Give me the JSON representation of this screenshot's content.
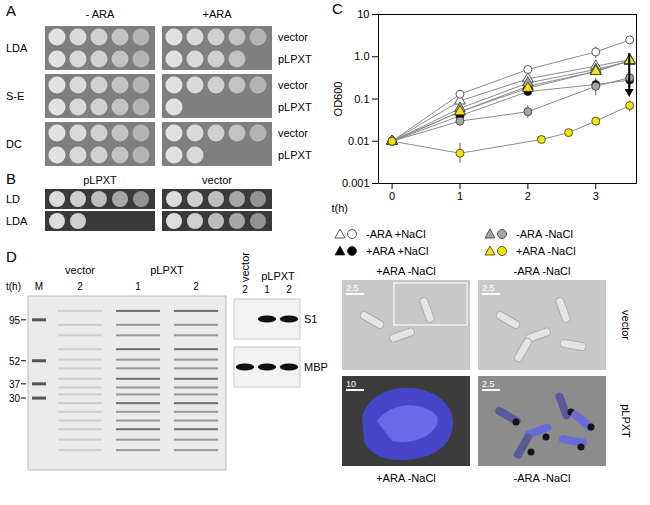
{
  "panels": {
    "A": {
      "label": "A",
      "columns": [
        "- ARA",
        "+ARA"
      ],
      "strains": [
        "vector",
        "pLPXT"
      ],
      "rows": [
        {
          "name": "LDA",
          "spots": [
            [
              5,
              5
            ],
            [
              5,
              4
            ]
          ]
        },
        {
          "name": "S-E",
          "spots": [
            [
              5,
              5
            ],
            [
              5,
              1
            ]
          ]
        },
        {
          "name": "DC",
          "spots": [
            [
              5,
              5
            ],
            [
              5,
              2
            ]
          ]
        }
      ]
    },
    "B": {
      "label": "B",
      "columns": [
        "pLPXT",
        "vector"
      ],
      "rows": [
        {
          "name": "LD",
          "spots": [
            5,
            5
          ]
        },
        {
          "name": "LDA",
          "spots": [
            2,
            5
          ]
        }
      ]
    },
    "C": {
      "label": "C",
      "images": {
        "top_labels": [
          "+ARA -NaCl",
          "-ARA -NaCl"
        ],
        "bottom_labels": [
          "+ARA -NaCl",
          "-ARA -NaCl"
        ],
        "row_labels": [
          "vector",
          "pLPXT"
        ],
        "scale_bars": [
          [
            2.5,
            2.5
          ],
          [
            10,
            2.5
          ]
        ]
      }
    },
    "D": {
      "label": "D",
      "time_label": "t(h)",
      "marker_label": "M",
      "marker_sizes": [
        95,
        52,
        37,
        30
      ],
      "gel_lanes": [
        {
          "group": "vector",
          "t": 2
        },
        {
          "group": "pLPXT",
          "t": 1
        },
        {
          "group": "pLPXT",
          "t": 2
        }
      ],
      "blot_lanes": [
        {
          "group": "vector",
          "t": 2
        },
        {
          "group": "pLPXT",
          "t": 1
        },
        {
          "group": "pLPXT",
          "t": 2
        }
      ],
      "bands": [
        {
          "name": "S1",
          "present": [
            false,
            true,
            true
          ]
        },
        {
          "name": "MBP",
          "present": [
            true,
            true,
            true
          ]
        }
      ]
    }
  },
  "chart_data": {
    "type": "line",
    "xlabel": "t(h)",
    "ylabel": "OD600",
    "xlim": [
      -0.2,
      3.6
    ],
    "xticks": [
      0,
      1,
      2,
      3
    ],
    "ylim": [
      0.001,
      10
    ],
    "yticks": [
      0.001,
      0.01,
      0.1,
      {
        "value": 1,
        "label": "1.0"
      },
      10
    ],
    "log": "y",
    "grid": false,
    "legend": "bottom",
    "series": [
      {
        "name": "-ARA +NaCl",
        "marker": "triangle",
        "color": "#ffffff",
        "x": [
          0,
          1,
          2,
          3,
          3.5
        ],
        "values": [
          0.01,
          0.09,
          0.3,
          0.6,
          0.85
        ]
      },
      {
        "name": "-ARA +NaCl",
        "marker": "circle",
        "color": "#ffffff",
        "x": [
          0,
          1,
          2,
          3,
          3.5
        ],
        "values": [
          0.01,
          0.13,
          0.5,
          1.3,
          2.5
        ],
        "errors": [
          null,
          [
            0.1,
            0.16
          ],
          null,
          [
            0.9,
            1.7
          ],
          null
        ]
      },
      {
        "name": "+ARA +NaCl",
        "marker": "triangle",
        "color": "#000000",
        "x": [
          0,
          1,
          2,
          3,
          3.5
        ],
        "values": [
          0.01,
          0.05,
          0.2,
          0.45,
          0.8
        ]
      },
      {
        "name": "+ARA +NaCl",
        "marker": "circle",
        "color": "#000000",
        "x": [
          0,
          1,
          2,
          3,
          3.5
        ],
        "values": [
          0.01,
          0.04,
          0.15,
          0.22,
          0.28
        ],
        "errors": [
          null,
          null,
          null,
          [
            0.16,
            0.3
          ],
          [
            0.2,
            0.38
          ]
        ]
      },
      {
        "name": "-ARA -NaCl",
        "marker": "triangle",
        "color": "#a6a6a6",
        "x": [
          0,
          1,
          2,
          3,
          3.5
        ],
        "values": [
          0.01,
          0.06,
          0.24,
          0.5,
          0.78
        ]
      },
      {
        "name": "-ARA -NaCl",
        "marker": "circle",
        "color": "#a6a6a6",
        "x": [
          0,
          1,
          2,
          3,
          3.5
        ],
        "values": [
          0.01,
          0.03,
          0.05,
          0.2,
          0.32
        ],
        "errors": [
          null,
          [
            0.022,
            0.04
          ],
          [
            0.035,
            0.07
          ],
          [
            0.12,
            0.3
          ],
          [
            0.18,
            0.5
          ]
        ]
      },
      {
        "name": "+ARA -NaCl",
        "marker": "triangle",
        "color": "#f2e600",
        "x": [
          0,
          1,
          2,
          3,
          3.5
        ],
        "values": [
          0.01,
          0.05,
          0.18,
          0.45,
          0.82
        ]
      },
      {
        "name": "+ARA -NaCl",
        "marker": "circle",
        "color": "#f2e600",
        "x": [
          0,
          1,
          2.2,
          2.6,
          3,
          3.5
        ],
        "values": [
          0.01,
          0.0052,
          0.011,
          0.016,
          0.03,
          0.07
        ],
        "errors": [
          [
            0.008,
            0.013
          ],
          [
            0.003,
            0.009
          ],
          null,
          null,
          null,
          [
            0.05,
            0.09
          ]
        ]
      }
    ]
  }
}
